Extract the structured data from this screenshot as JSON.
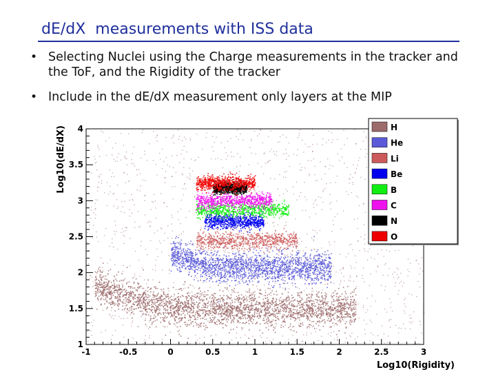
{
  "slide": {
    "title": "dE/dX  measurements with ISS data",
    "bullets": [
      {
        "text": "Selecting Nuclei using the Charge measurements in the tracker and the ToF, and the Rigidity of the tracker"
      },
      {
        "text": "Include in the dE/dX measurement only layers at the MIP"
      }
    ]
  },
  "chart_data": {
    "type": "scatter",
    "xlabel": "Log10(Rigidity)",
    "ylabel": "Log10(dE/dX)",
    "xlim": [
      -1,
      3
    ],
    "ylim": [
      1,
      4
    ],
    "x_ticks": [
      "-1",
      "-0.5",
      "0",
      "0.5",
      "1",
      "1.5",
      "2",
      "2.5",
      "3"
    ],
    "y_ticks": [
      "1",
      "1.5",
      "2",
      "2.5",
      "3",
      "3.5",
      "4"
    ],
    "legend_position": "top-right",
    "series": [
      {
        "name": "H",
        "color": "#9c6b6b",
        "x_range": [
          -0.9,
          2.2
        ],
        "y_center": 1.5,
        "y_spread": 0.12
      },
      {
        "name": "He",
        "color": "#5a5ad8",
        "x_range": [
          0.0,
          1.9
        ],
        "y_center": 2.08,
        "y_spread": 0.1
      },
      {
        "name": "Li",
        "color": "#cc5a5a",
        "x_range": [
          0.3,
          1.5
        ],
        "y_center": 2.45,
        "y_spread": 0.06
      },
      {
        "name": "Be",
        "color": "#0000ee",
        "x_range": [
          0.4,
          1.1
        ],
        "y_center": 2.72,
        "y_spread": 0.05
      },
      {
        "name": "B",
        "color": "#11ee11",
        "x_range": [
          0.3,
          1.4
        ],
        "y_center": 2.88,
        "y_spread": 0.05
      },
      {
        "name": "C",
        "color": "#ee11ee",
        "x_range": [
          0.3,
          1.2
        ],
        "y_center": 3.0,
        "y_spread": 0.05
      },
      {
        "name": "N",
        "color": "#000000",
        "x_range": [
          0.5,
          0.9
        ],
        "y_center": 3.18,
        "y_spread": 0.04
      },
      {
        "name": "O",
        "color": "#ee0000",
        "x_range": [
          0.3,
          1.0
        ],
        "y_center": 3.25,
        "y_spread": 0.05
      }
    ]
  }
}
